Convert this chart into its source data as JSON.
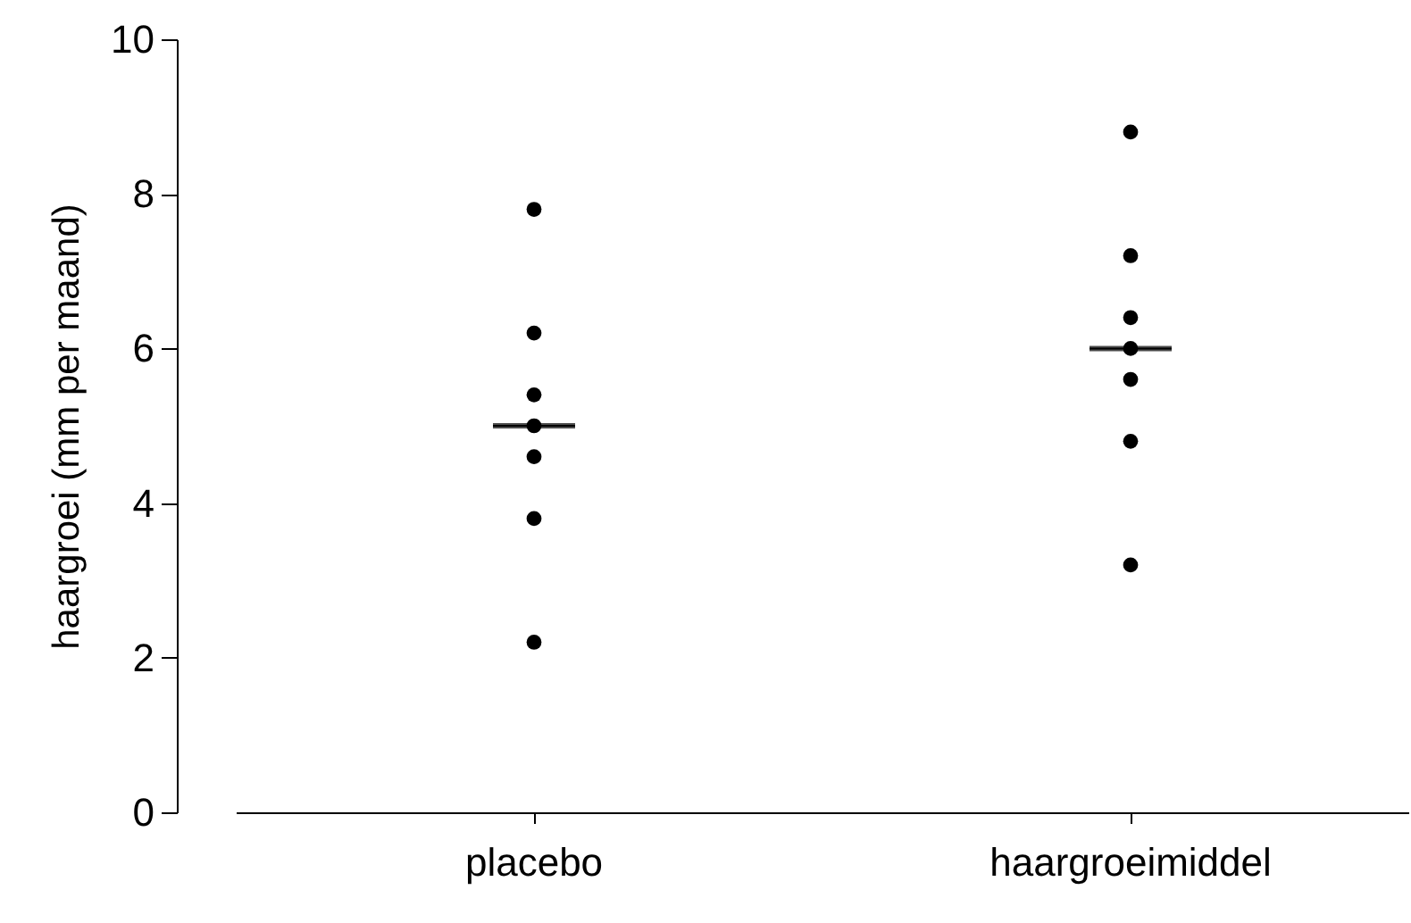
{
  "chart_data": {
    "type": "scatter",
    "ylabel": "haargroei (mm per maand)",
    "categories": [
      "placebo",
      "haargroeimiddel"
    ],
    "ylim": [
      0,
      10
    ],
    "yticks": [
      0,
      2,
      4,
      6,
      8,
      10
    ],
    "grid": false,
    "marker": "circle",
    "series": [
      {
        "color": "#000000",
        "x": [
          "placebo",
          "placebo",
          "placebo",
          "placebo",
          "placebo",
          "placebo",
          "placebo",
          "haargroeimiddel",
          "haargroeimiddel",
          "haargroeimiddel",
          "haargroeimiddel",
          "haargroeimiddel",
          "haargroeimiddel",
          "haargroeimiddel"
        ],
        "values": [
          7.8,
          6.2,
          5.4,
          5.0,
          4.6,
          3.8,
          2.2,
          8.8,
          7.2,
          6.4,
          6.0,
          5.6,
          4.8,
          3.2
        ]
      },
      {
        "type": "box",
        "color": "#000000",
        "boxes": [
          {
            "low": 5.0,
            "q1": 5.0,
            "median": 5.0,
            "q3": 5.0,
            "high": 5.0
          },
          {
            "low": 6.0,
            "q1": 6.0,
            "median": 6.0,
            "q3": 6.0,
            "high": 6.0
          }
        ]
      }
    ]
  }
}
